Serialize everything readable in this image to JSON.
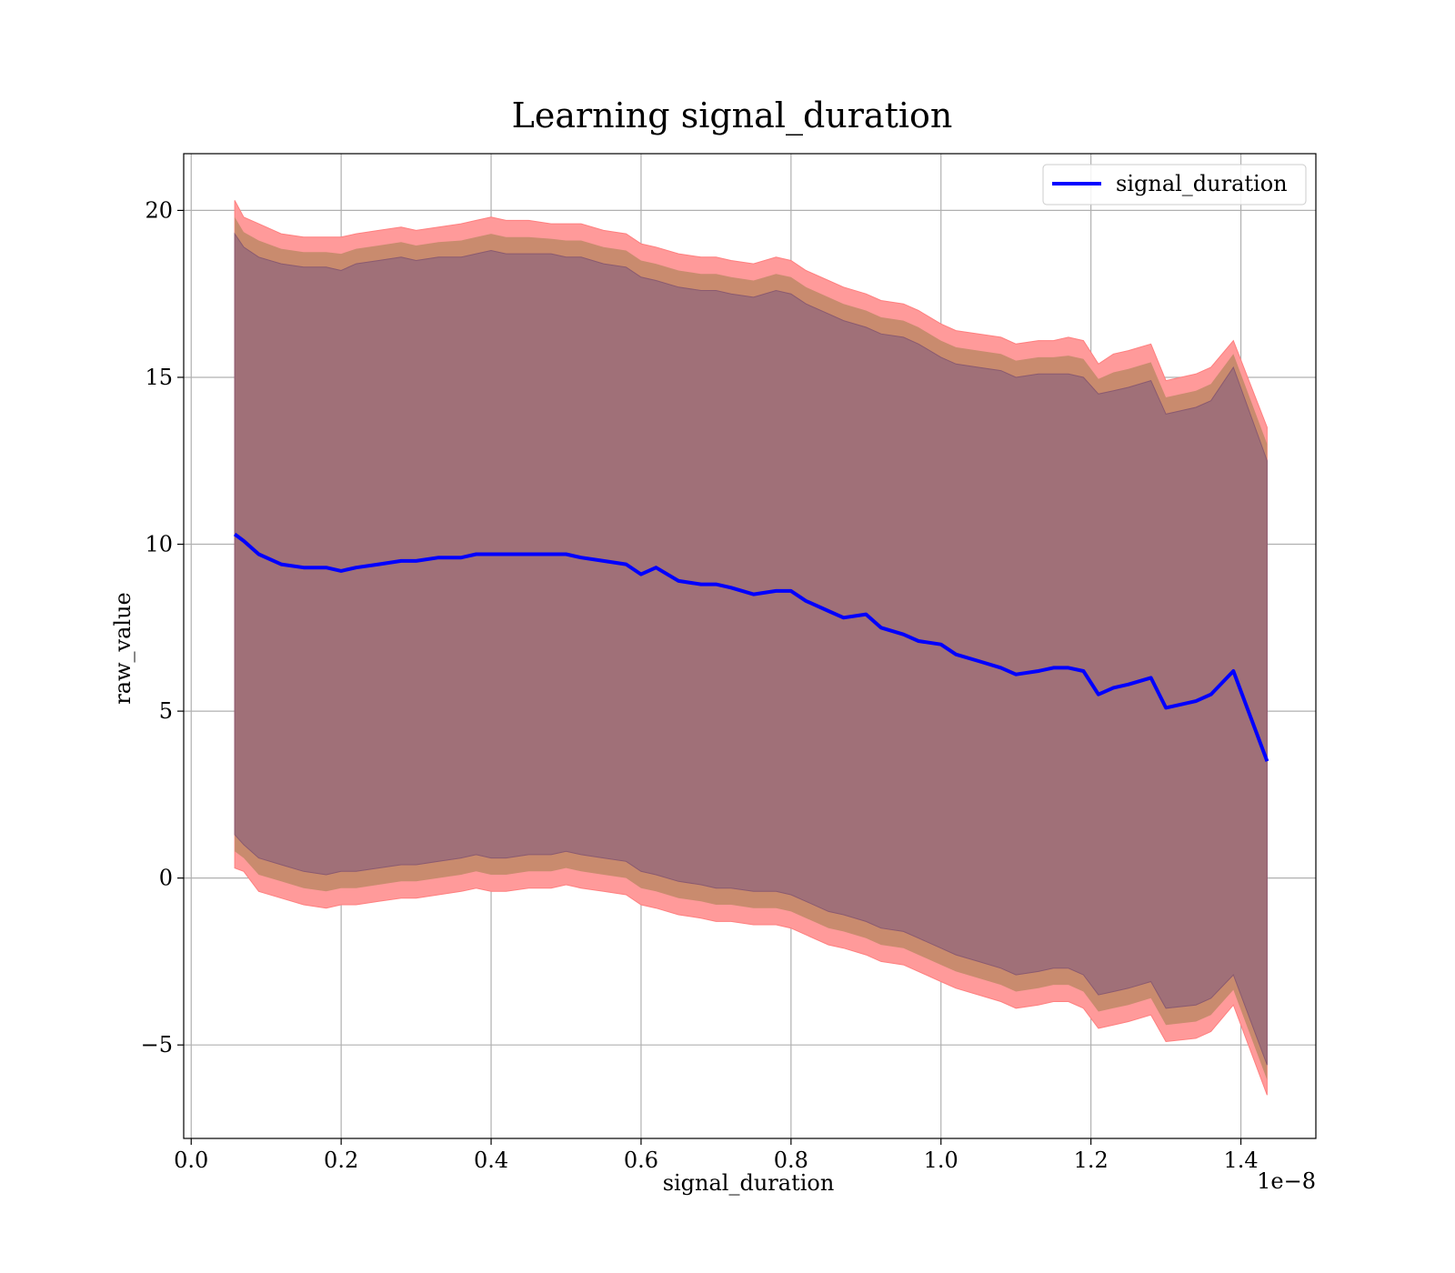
{
  "chart_data": {
    "type": "area",
    "title": "Learning signal_duration",
    "xlabel": "signal_duration",
    "ylabel": "raw_value",
    "x_offset_label": "1e−8",
    "xlim": [
      -0.01,
      1.5
    ],
    "ylim": [
      -7.8,
      21.7
    ],
    "x_ticks": [
      0.0,
      0.2,
      0.4,
      0.6,
      0.8,
      1.0,
      1.2,
      1.4
    ],
    "x_tick_labels": [
      "0.0",
      "0.2",
      "0.4",
      "0.6",
      "0.8",
      "1.0",
      "1.2",
      "1.4"
    ],
    "y_ticks": [
      -5,
      0,
      5,
      10,
      15,
      20
    ],
    "y_tick_labels": [
      "−5",
      "0",
      "5",
      "10",
      "15",
      "20"
    ],
    "grid": true,
    "legend_position": "top-right",
    "colors": {
      "line": "#0000ff",
      "outer_band": "#ff9a9a",
      "middle_band": "#c98b6e",
      "inner_band": "#a07078",
      "grid": "#b0b0b0"
    },
    "series": [
      {
        "name": "signal_duration",
        "x": [
          0.058,
          0.07,
          0.09,
          0.12,
          0.15,
          0.18,
          0.2,
          0.22,
          0.25,
          0.28,
          0.3,
          0.33,
          0.36,
          0.38,
          0.4,
          0.42,
          0.45,
          0.48,
          0.5,
          0.52,
          0.55,
          0.58,
          0.6,
          0.62,
          0.65,
          0.68,
          0.7,
          0.72,
          0.75,
          0.78,
          0.8,
          0.82,
          0.85,
          0.87,
          0.9,
          0.92,
          0.95,
          0.97,
          1.0,
          1.02,
          1.05,
          1.08,
          1.1,
          1.13,
          1.15,
          1.17,
          1.19,
          1.21,
          1.23,
          1.25,
          1.28,
          1.3,
          1.34,
          1.36,
          1.39,
          1.435
        ],
        "mean": [
          10.3,
          10.1,
          9.7,
          9.4,
          9.3,
          9.3,
          9.2,
          9.3,
          9.4,
          9.5,
          9.5,
          9.6,
          9.6,
          9.7,
          9.7,
          9.7,
          9.7,
          9.7,
          9.7,
          9.6,
          9.5,
          9.4,
          9.1,
          9.3,
          8.9,
          8.8,
          8.8,
          8.7,
          8.5,
          8.6,
          8.6,
          8.3,
          8.0,
          7.8,
          7.9,
          7.5,
          7.3,
          7.1,
          7.0,
          6.7,
          6.5,
          6.3,
          6.1,
          6.2,
          6.3,
          6.3,
          6.2,
          5.5,
          5.7,
          5.8,
          6.0,
          5.1,
          5.3,
          5.5,
          6.2,
          3.5
        ],
        "outer_upper": [
          20.3,
          19.8,
          19.6,
          19.3,
          19.2,
          19.2,
          19.2,
          19.3,
          19.4,
          19.5,
          19.4,
          19.5,
          19.6,
          19.7,
          19.8,
          19.7,
          19.7,
          19.6,
          19.6,
          19.6,
          19.4,
          19.3,
          19.0,
          18.9,
          18.7,
          18.6,
          18.6,
          18.5,
          18.4,
          18.6,
          18.5,
          18.2,
          17.9,
          17.7,
          17.5,
          17.3,
          17.2,
          17.0,
          16.6,
          16.4,
          16.3,
          16.2,
          16.0,
          16.1,
          16.1,
          16.2,
          16.1,
          15.4,
          15.7,
          15.8,
          16.0,
          14.9,
          15.1,
          15.3,
          16.1,
          13.5
        ],
        "outer_lower": [
          0.3,
          0.2,
          -0.4,
          -0.6,
          -0.8,
          -0.9,
          -0.8,
          -0.8,
          -0.7,
          -0.6,
          -0.6,
          -0.5,
          -0.4,
          -0.3,
          -0.4,
          -0.4,
          -0.3,
          -0.3,
          -0.2,
          -0.3,
          -0.4,
          -0.5,
          -0.8,
          -0.9,
          -1.1,
          -1.2,
          -1.3,
          -1.3,
          -1.4,
          -1.4,
          -1.5,
          -1.7,
          -2.0,
          -2.1,
          -2.3,
          -2.5,
          -2.6,
          -2.8,
          -3.1,
          -3.3,
          -3.5,
          -3.7,
          -3.9,
          -3.8,
          -3.7,
          -3.7,
          -3.9,
          -4.5,
          -4.4,
          -4.3,
          -4.1,
          -4.9,
          -4.8,
          -4.6,
          -3.8,
          -6.5
        ],
        "inner_upper": [
          19.3,
          18.9,
          18.6,
          18.4,
          18.3,
          18.3,
          18.2,
          18.4,
          18.5,
          18.6,
          18.5,
          18.6,
          18.6,
          18.7,
          18.8,
          18.7,
          18.7,
          18.7,
          18.6,
          18.6,
          18.4,
          18.3,
          18.0,
          17.9,
          17.7,
          17.6,
          17.6,
          17.5,
          17.4,
          17.6,
          17.5,
          17.2,
          16.9,
          16.7,
          16.5,
          16.3,
          16.2,
          16.0,
          15.6,
          15.4,
          15.3,
          15.2,
          15.0,
          15.1,
          15.1,
          15.1,
          15.0,
          14.5,
          14.6,
          14.7,
          14.9,
          13.9,
          14.1,
          14.3,
          15.3,
          12.5
        ],
        "inner_lower": [
          1.3,
          1.0,
          0.6,
          0.4,
          0.2,
          0.1,
          0.2,
          0.2,
          0.3,
          0.4,
          0.4,
          0.5,
          0.6,
          0.7,
          0.6,
          0.6,
          0.7,
          0.7,
          0.8,
          0.7,
          0.6,
          0.5,
          0.2,
          0.1,
          -0.1,
          -0.2,
          -0.3,
          -0.3,
          -0.4,
          -0.4,
          -0.5,
          -0.7,
          -1.0,
          -1.1,
          -1.3,
          -1.5,
          -1.6,
          -1.8,
          -2.1,
          -2.3,
          -2.5,
          -2.7,
          -2.9,
          -2.8,
          -2.7,
          -2.7,
          -2.9,
          -3.5,
          -3.4,
          -3.3,
          -3.1,
          -3.9,
          -3.8,
          -3.6,
          -2.9,
          -5.6
        ]
      }
    ]
  }
}
